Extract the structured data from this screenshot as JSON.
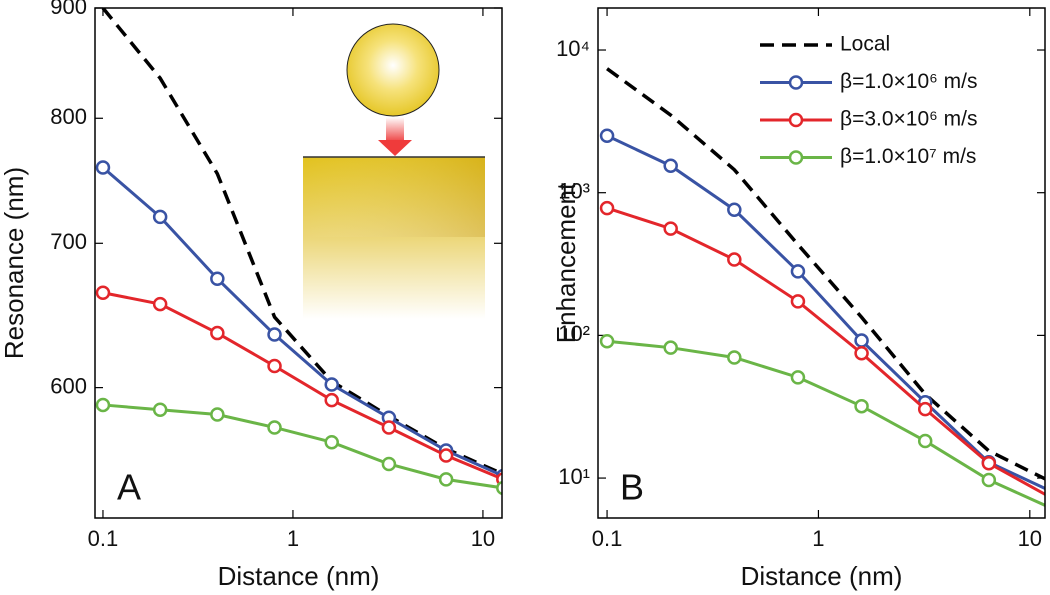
{
  "chart_data": [
    {
      "type": "line",
      "xlabel": "Distance (nm)",
      "ylabel": "Resonance (nm)",
      "panel_label": "A",
      "xscale": "log",
      "yscale": "log",
      "xlim": [
        0.0908,
        12.6
      ],
      "ylim": [
        522,
        900
      ],
      "xticks": [
        0.1,
        1,
        10
      ],
      "yticks": [
        600,
        700,
        800,
        900
      ],
      "x": [
        0.1,
        0.2,
        0.4,
        0.8,
        1.6,
        3.2,
        6.4,
        12.8
      ],
      "series": [
        {
          "color": "#000000",
          "linestyle": "dashed",
          "marker": "none",
          "values": [
            900,
            835,
            754,
            647,
            604,
            582,
            562,
            547
          ]
        },
        {
          "color": "#3953a4",
          "linestyle": "solid",
          "marker": "circle",
          "values": [
            759,
            720,
            674,
            635,
            602,
            581,
            561,
            546
          ]
        },
        {
          "color": "#e3262b",
          "linestyle": "solid",
          "marker": "circle",
          "values": [
            664,
            656,
            636,
            614,
            592,
            575,
            558,
            544
          ]
        },
        {
          "color": "#6ab547",
          "linestyle": "solid",
          "marker": "circle",
          "values": [
            589,
            586,
            583,
            575,
            566,
            553,
            544,
            539
          ]
        }
      ]
    },
    {
      "type": "line",
      "xlabel": "Distance (nm)",
      "ylabel": "Enhancement",
      "panel_label": "B",
      "xscale": "log",
      "yscale": "log",
      "legend": "upper right",
      "xlim": [
        0.0906,
        11.8
      ],
      "ylim": [
        5.25,
        19700
      ],
      "xticks": [
        0.1,
        1,
        10
      ],
      "yticks": [
        {
          "value": 10,
          "label": "10¹"
        },
        {
          "value": 100,
          "label": "10²"
        },
        {
          "value": 1000,
          "label": "10³"
        },
        {
          "value": 10000,
          "label": "10⁴"
        }
      ],
      "x": [
        0.1,
        0.2,
        0.4,
        0.8,
        1.6,
        3.2,
        6.4,
        12.8
      ],
      "series": [
        {
          "name": "Local",
          "color": "#000000",
          "linestyle": "dashed",
          "marker": "none",
          "values": [
            7400,
            3500,
            1450,
            433,
            134,
            38.7,
            15.5,
            9.3
          ]
        },
        {
          "name": "β=1.0×10⁶ m/s",
          "color": "#3953a4",
          "linestyle": "solid",
          "marker": "circle",
          "values": [
            2506,
            1545,
            760,
            281,
            92,
            34,
            12.9,
            8.0
          ]
        },
        {
          "name": "β=3.0×10⁶ m/s",
          "color": "#e3262b",
          "linestyle": "solid",
          "marker": "circle",
          "values": [
            780,
            560,
            340,
            173,
            75,
            30.4,
            12.7,
            7.2
          ]
        },
        {
          "name": "β=1.0×10⁷ m/s",
          "color": "#6ab547",
          "linestyle": "solid",
          "marker": "circle",
          "values": [
            91,
            82,
            70,
            50.8,
            31.9,
            18.2,
            9.7,
            6.1
          ]
        }
      ]
    }
  ]
}
